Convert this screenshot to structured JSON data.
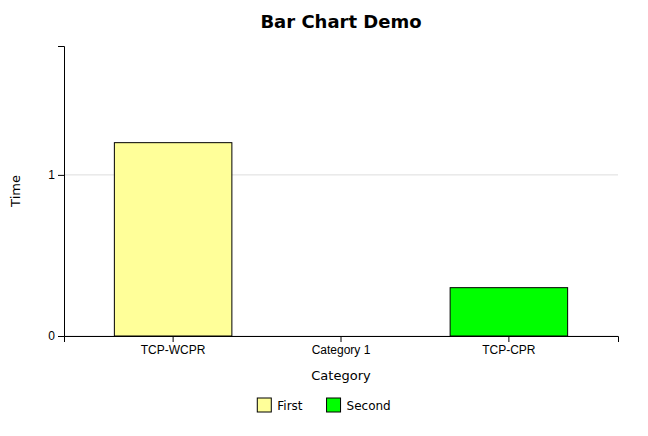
{
  "chart_data": {
    "type": "bar",
    "title": "Bar Chart Demo",
    "xlabel": "Category",
    "ylabel": "Time",
    "categories": [
      "TCP-WCPR",
      "Category 1",
      "TCP-CPR"
    ],
    "series": [
      {
        "name": "First",
        "color": "#ffff99",
        "values": [
          1.2,
          null,
          null
        ]
      },
      {
        "name": "Second",
        "color": "#00ff00",
        "values": [
          null,
          null,
          0.3
        ]
      }
    ],
    "ylim": [
      0,
      1.8
    ],
    "yticks": [
      0,
      1
    ],
    "grid": true,
    "legend": "bottom"
  }
}
